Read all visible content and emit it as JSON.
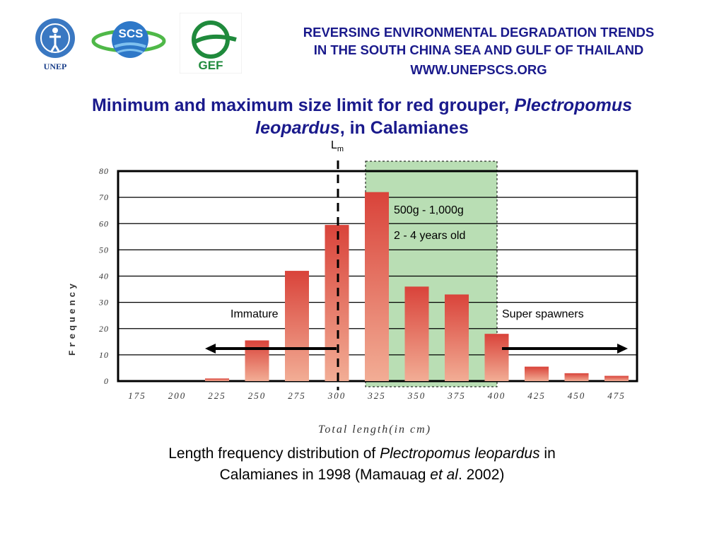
{
  "header": {
    "line1": "REVERSING ENVIRONMENTAL DEGRADATION TRENDS",
    "line2": "IN THE SOUTH CHINA SEA AND GULF OF THAILAND",
    "url": "WWW.UNEPSCS.ORG"
  },
  "logos": {
    "unep_text": "UNEP",
    "scs_text": "SCS",
    "gef_text": "GEF"
  },
  "title": {
    "part1": "Minimum and maximum size limit for red grouper, ",
    "italic_a": "Plectropomus",
    "italic_b": "leopardus",
    "part2": ", in Calamianes"
  },
  "chart_data": {
    "type": "bar",
    "categories": [
      "175",
      "200",
      "225",
      "250",
      "275",
      "300",
      "325",
      "350",
      "375",
      "400",
      "425",
      "450",
      "475"
    ],
    "values": [
      0,
      0,
      1,
      15.5,
      42,
      59.5,
      72,
      36,
      33,
      18,
      5.5,
      3,
      2
    ],
    "ylim": [
      0,
      80
    ],
    "yticks": [
      "0",
      "10",
      "20",
      "30",
      "40",
      "50",
      "60",
      "70",
      "80"
    ],
    "xlabel": "Total length(in cm)",
    "ylabel": "Frequency",
    "lm_label": "L",
    "lm_sub": "m",
    "annotations": {
      "weight": "500g - 1,000g",
      "age": "2 - 4 years old",
      "immature": "Immature",
      "super_spawners": "Super spawners"
    },
    "colors": {
      "bar_top": "#d9433a",
      "bar_bottom": "#f2ad95",
      "highlight_fill": "#b9deb4",
      "grid": "#000000"
    }
  },
  "caption": {
    "text1": "Length frequency distribution of ",
    "italic1": "Plectropomus leopardus",
    "text2": " in",
    "text3": "Calamianes in 1998 (Mamauag ",
    "italic2": "et al",
    "text4": ". 2002)"
  }
}
